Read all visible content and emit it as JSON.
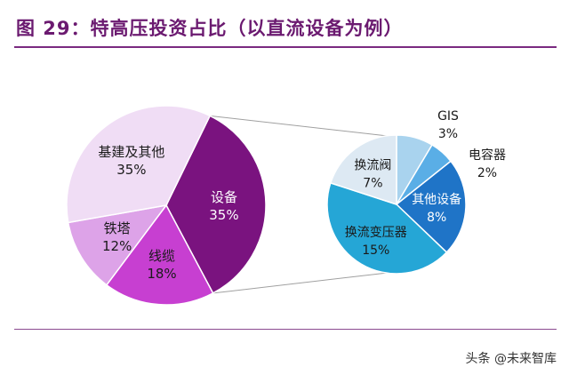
{
  "title": "图 29：特高压投资占比（以直流设备为例）",
  "watermark": "头条 @未来智库",
  "colors": {
    "title": "#6b1a70",
    "rule": "#7a2a80",
    "connector": "#a0a0a0"
  },
  "chart_data": [
    {
      "type": "pie",
      "slices": [
        {
          "label": "设备",
          "value": 35,
          "value_text": "35%",
          "color": "#7a137f",
          "text": "light"
        },
        {
          "label": "线缆",
          "value": 18,
          "value_text": "18%",
          "color": "#c73fd1",
          "text": "dark"
        },
        {
          "label": "铁塔",
          "value": 12,
          "value_text": "12%",
          "color": "#dda3e8",
          "text": "dark"
        },
        {
          "label": "基建及其他",
          "value": 35,
          "value_text": "35%",
          "color": "#f0ddf5",
          "text": "dark"
        }
      ]
    },
    {
      "type": "pie",
      "parent_slice": "设备",
      "slices": [
        {
          "label": "GIS",
          "value": 3,
          "value_text": "3%",
          "color": "#a9d3ee",
          "text": "dark"
        },
        {
          "label": "电容器",
          "value": 2,
          "value_text": "2%",
          "color": "#5aaee6",
          "text": "dark"
        },
        {
          "label": "其他设备",
          "value": 8,
          "value_text": "8%",
          "color": "#1f74c7",
          "text": "light"
        },
        {
          "label": "换流变压器",
          "value": 15,
          "value_text": "15%",
          "color": "#25a6d6",
          "text": "dark"
        },
        {
          "label": "换流阀",
          "value": 7,
          "value_text": "7%",
          "color": "#dde9f3",
          "text": "dark"
        }
      ]
    }
  ]
}
